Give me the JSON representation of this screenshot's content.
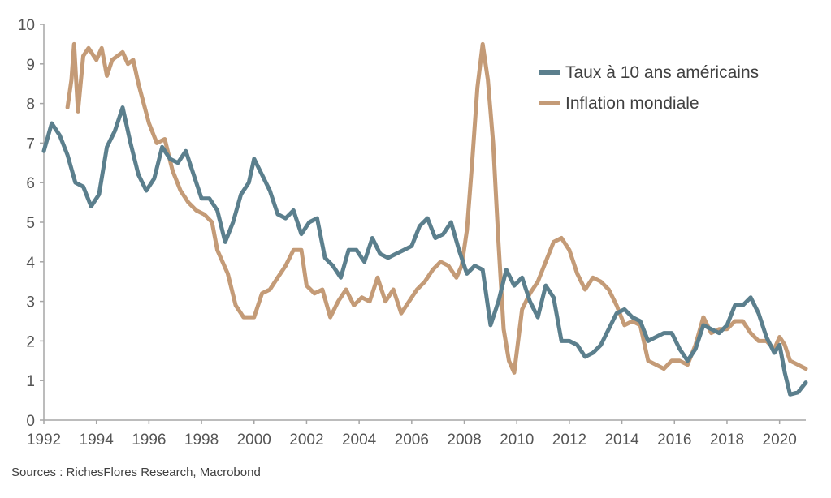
{
  "chart_data": {
    "type": "line",
    "title": "",
    "xlabel": "",
    "ylabel": "",
    "xlim": [
      1992,
      2021
    ],
    "ylim": [
      0,
      10
    ],
    "x_ticks": [
      "1992",
      "1994",
      "1996",
      "1998",
      "2000",
      "2002",
      "2004",
      "2006",
      "2008",
      "2010",
      "2012",
      "2014",
      "2016",
      "2018",
      "2020"
    ],
    "y_ticks": [
      "0",
      "1",
      "2",
      "3",
      "4",
      "5",
      "6",
      "7",
      "8",
      "9",
      "10"
    ],
    "grid": false,
    "legend_position": "top-right",
    "series": [
      {
        "name": "Taux à 10 ans américains",
        "color": "#5b7f8d",
        "x": [
          1992.0,
          1992.3,
          1992.6,
          1992.9,
          1993.2,
          1993.5,
          1993.8,
          1994.1,
          1994.4,
          1994.7,
          1995.0,
          1995.3,
          1995.6,
          1995.9,
          1996.2,
          1996.5,
          1996.8,
          1997.1,
          1997.4,
          1997.7,
          1998.0,
          1998.3,
          1998.6,
          1998.9,
          1999.2,
          1999.5,
          1999.8,
          2000.0,
          2000.3,
          2000.6,
          2000.9,
          2001.2,
          2001.5,
          2001.8,
          2002.1,
          2002.4,
          2002.7,
          2003.0,
          2003.3,
          2003.6,
          2003.9,
          2004.2,
          2004.5,
          2004.8,
          2005.1,
          2005.4,
          2005.7,
          2006.0,
          2006.3,
          2006.6,
          2006.9,
          2007.2,
          2007.5,
          2007.8,
          2008.1,
          2008.4,
          2008.7,
          2009.0,
          2009.3,
          2009.6,
          2009.9,
          2010.2,
          2010.5,
          2010.8,
          2011.1,
          2011.4,
          2011.7,
          2012.0,
          2012.3,
          2012.6,
          2012.9,
          2013.2,
          2013.5,
          2013.8,
          2014.1,
          2014.4,
          2014.7,
          2015.0,
          2015.3,
          2015.6,
          2015.9,
          2016.2,
          2016.5,
          2016.8,
          2017.1,
          2017.4,
          2017.7,
          2018.0,
          2018.3,
          2018.6,
          2018.9,
          2019.2,
          2019.5,
          2019.8,
          2020.0,
          2020.2,
          2020.4,
          2020.7,
          2021.0
        ],
        "values": [
          6.8,
          7.5,
          7.2,
          6.7,
          6.0,
          5.9,
          5.4,
          5.7,
          6.9,
          7.3,
          7.9,
          7.0,
          6.2,
          5.8,
          6.1,
          6.9,
          6.6,
          6.5,
          6.8,
          6.2,
          5.6,
          5.6,
          5.3,
          4.5,
          5.0,
          5.7,
          6.0,
          6.6,
          6.2,
          5.8,
          5.2,
          5.1,
          5.3,
          4.7,
          5.0,
          5.1,
          4.1,
          3.9,
          3.6,
          4.3,
          4.3,
          4.0,
          4.6,
          4.2,
          4.1,
          4.2,
          4.3,
          4.4,
          4.9,
          5.1,
          4.6,
          4.7,
          5.0,
          4.3,
          3.7,
          3.9,
          3.8,
          2.4,
          3.0,
          3.8,
          3.4,
          3.6,
          3.0,
          2.6,
          3.4,
          3.1,
          2.0,
          2.0,
          1.9,
          1.6,
          1.7,
          1.9,
          2.3,
          2.7,
          2.8,
          2.6,
          2.5,
          2.0,
          2.1,
          2.2,
          2.2,
          1.8,
          1.5,
          1.8,
          2.4,
          2.3,
          2.2,
          2.4,
          2.9,
          2.9,
          3.1,
          2.7,
          2.1,
          1.7,
          1.9,
          1.2,
          0.65,
          0.7,
          0.95
        ]
      },
      {
        "name": "Inflation mondiale",
        "color": "#c49b77",
        "x": [
          1992.9,
          1993.05,
          1993.15,
          1993.3,
          1993.5,
          1993.7,
          1994.0,
          1994.2,
          1994.4,
          1994.6,
          1994.8,
          1995.0,
          1995.2,
          1995.4,
          1995.6,
          1995.8,
          1996.0,
          1996.3,
          1996.6,
          1996.9,
          1997.2,
          1997.5,
          1997.8,
          1998.1,
          1998.4,
          1998.6,
          1998.8,
          1999.0,
          1999.3,
          1999.6,
          1999.8,
          2000.0,
          2000.3,
          2000.6,
          2000.9,
          2001.2,
          2001.5,
          2001.8,
          2002.0,
          2002.3,
          2002.6,
          2002.9,
          2003.2,
          2003.5,
          2003.8,
          2004.1,
          2004.4,
          2004.7,
          2005.0,
          2005.3,
          2005.6,
          2005.9,
          2006.2,
          2006.5,
          2006.8,
          2007.1,
          2007.4,
          2007.7,
          2007.9,
          2008.1,
          2008.3,
          2008.5,
          2008.7,
          2008.9,
          2009.1,
          2009.3,
          2009.5,
          2009.7,
          2009.9,
          2010.2,
          2010.5,
          2010.8,
          2011.1,
          2011.4,
          2011.7,
          2012.0,
          2012.3,
          2012.6,
          2012.9,
          2013.2,
          2013.5,
          2013.8,
          2014.1,
          2014.4,
          2014.7,
          2015.0,
          2015.3,
          2015.6,
          2015.9,
          2016.2,
          2016.5,
          2016.8,
          2017.1,
          2017.4,
          2017.7,
          2018.0,
          2018.3,
          2018.6,
          2018.9,
          2019.2,
          2019.5,
          2019.8,
          2020.0,
          2020.2,
          2020.4,
          2020.7,
          2021.0
        ],
        "values": [
          7.9,
          8.6,
          9.5,
          7.8,
          9.2,
          9.4,
          9.1,
          9.4,
          8.7,
          9.1,
          9.2,
          9.3,
          9.0,
          9.1,
          8.5,
          8.0,
          7.5,
          7.0,
          7.1,
          6.3,
          5.8,
          5.5,
          5.3,
          5.2,
          5.0,
          4.3,
          4.0,
          3.7,
          2.9,
          2.6,
          2.6,
          2.6,
          3.2,
          3.3,
          3.6,
          3.9,
          4.3,
          4.3,
          3.4,
          3.2,
          3.3,
          2.6,
          3.0,
          3.3,
          2.9,
          3.1,
          3.0,
          3.6,
          3.0,
          3.3,
          2.7,
          3.0,
          3.3,
          3.5,
          3.8,
          4.0,
          3.9,
          3.6,
          3.9,
          4.8,
          6.5,
          8.4,
          9.5,
          8.6,
          7.0,
          4.5,
          2.3,
          1.5,
          1.2,
          2.8,
          3.2,
          3.5,
          4.0,
          4.5,
          4.6,
          4.3,
          3.7,
          3.3,
          3.6,
          3.5,
          3.3,
          2.9,
          2.4,
          2.5,
          2.4,
          1.5,
          1.4,
          1.3,
          1.5,
          1.5,
          1.4,
          1.9,
          2.6,
          2.2,
          2.3,
          2.3,
          2.5,
          2.5,
          2.2,
          2.0,
          2.0,
          1.8,
          2.1,
          1.9,
          1.5,
          1.4,
          1.3
        ]
      }
    ],
    "source": "Sources : RichesFlores Research, Macrobond"
  }
}
